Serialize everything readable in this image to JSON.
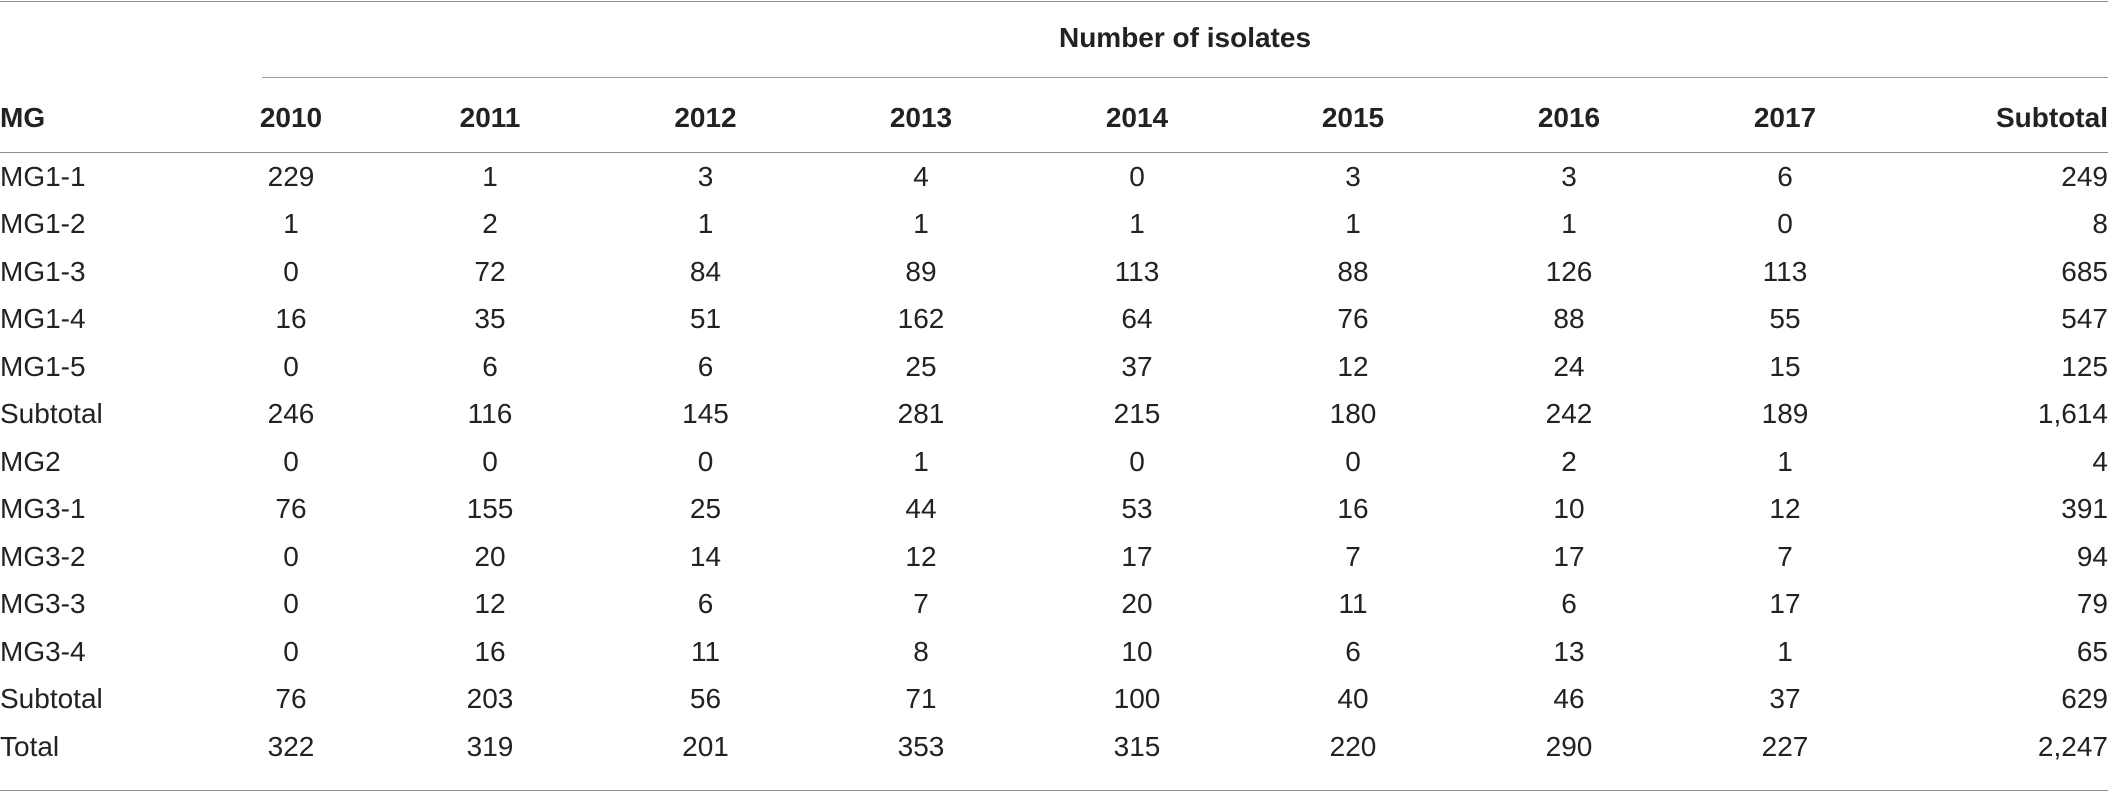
{
  "table": {
    "span_header": "Number of isolates",
    "columns": [
      "MG",
      "2010",
      "2011",
      "2012",
      "2013",
      "2014",
      "2015",
      "2016",
      "2017",
      "Subtotal"
    ],
    "rows": [
      [
        "MG1-1",
        "229",
        "1",
        "3",
        "4",
        "0",
        "3",
        "3",
        "6",
        "249"
      ],
      [
        "MG1-2",
        "1",
        "2",
        "1",
        "1",
        "1",
        "1",
        "1",
        "0",
        "8"
      ],
      [
        "MG1-3",
        "0",
        "72",
        "84",
        "89",
        "113",
        "88",
        "126",
        "113",
        "685"
      ],
      [
        "MG1-4",
        "16",
        "35",
        "51",
        "162",
        "64",
        "76",
        "88",
        "55",
        "547"
      ],
      [
        "MG1-5",
        "0",
        "6",
        "6",
        "25",
        "37",
        "12",
        "24",
        "15",
        "125"
      ],
      [
        "Subtotal",
        "246",
        "116",
        "145",
        "281",
        "215",
        "180",
        "242",
        "189",
        "1,614"
      ],
      [
        "MG2",
        "0",
        "0",
        "0",
        "1",
        "0",
        "0",
        "2",
        "1",
        "4"
      ],
      [
        "MG3-1",
        "76",
        "155",
        "25",
        "44",
        "53",
        "16",
        "10",
        "12",
        "391"
      ],
      [
        "MG3-2",
        "0",
        "20",
        "14",
        "12",
        "17",
        "7",
        "17",
        "7",
        "94"
      ],
      [
        "MG3-3",
        "0",
        "12",
        "6",
        "7",
        "20",
        "11",
        "6",
        "17",
        "79"
      ],
      [
        "MG3-4",
        "0",
        "16",
        "11",
        "8",
        "10",
        "6",
        "13",
        "1",
        "65"
      ],
      [
        "Subtotal",
        "76",
        "203",
        "56",
        "71",
        "100",
        "40",
        "46",
        "37",
        "629"
      ],
      [
        "Total",
        "322",
        "319",
        "201",
        "353",
        "315",
        "220",
        "290",
        "227",
        "2,247"
      ]
    ]
  }
}
